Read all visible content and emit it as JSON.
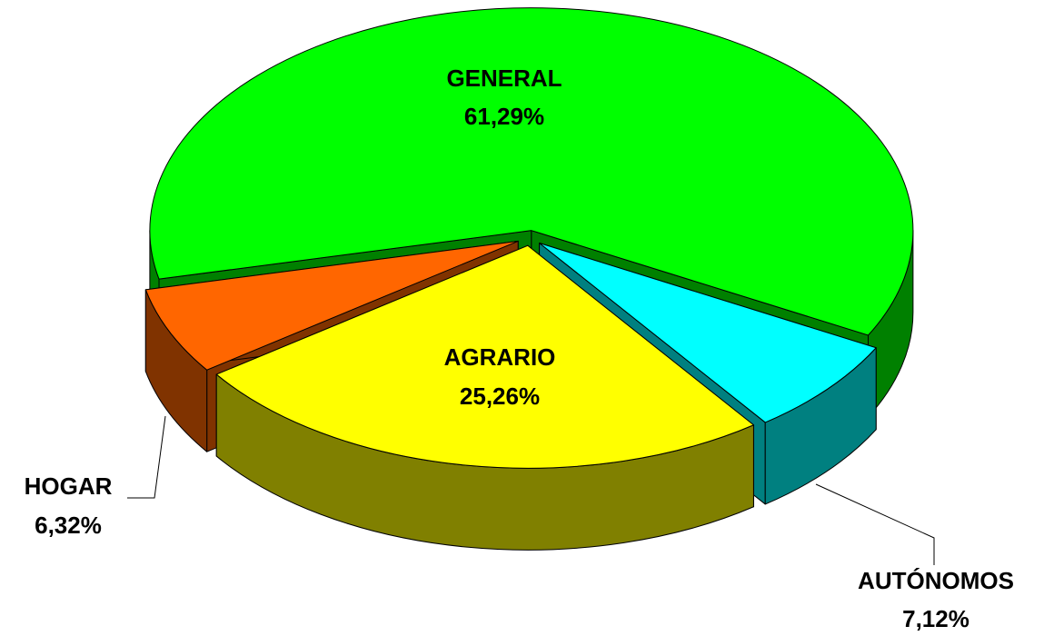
{
  "chart_data": {
    "type": "pie",
    "categories": [
      "GENERAL",
      "AUTÓNOMOS",
      "AGRARIO",
      "HOGAR"
    ],
    "values": [
      61.29,
      7.12,
      25.26,
      6.32
    ],
    "value_labels": [
      "61,29%",
      "7,12%",
      "25,26%",
      "6,32%"
    ],
    "colors": [
      "#00ff00",
      "#00ffff",
      "#ffff00",
      "#ff6600"
    ]
  }
}
